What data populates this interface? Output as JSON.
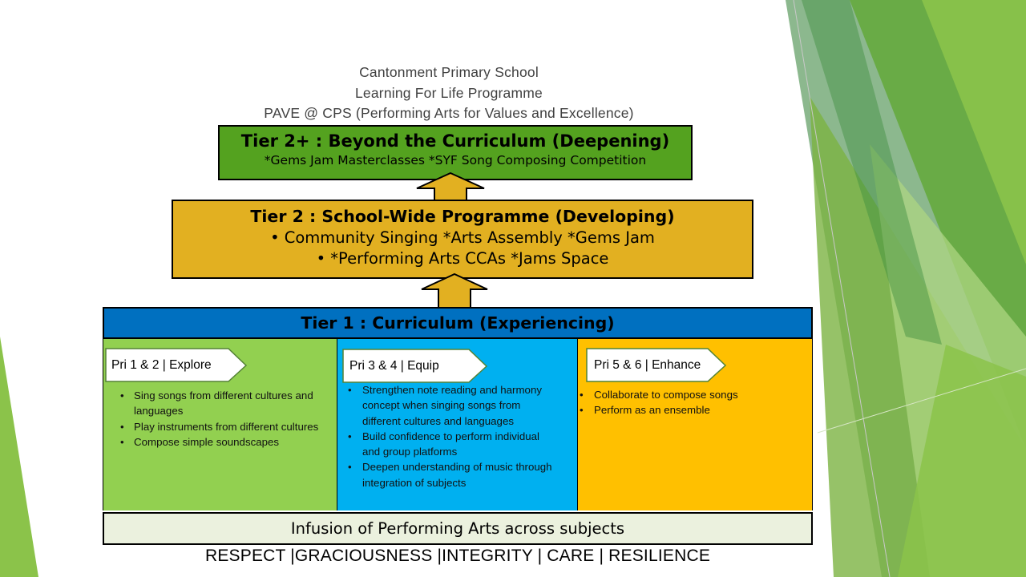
{
  "header": {
    "line1": "Cantonment Primary School",
    "line2": "Learning For Life Programme",
    "line3": "PAVE @ CPS (Performing Arts for Values and Excellence)"
  },
  "tier2plus": {
    "title": "Tier 2+ : Beyond the Curriculum (Deepening)",
    "subtitle": "*Gems Jam Masterclasses  *SYF Song Composing Competition"
  },
  "tier2": {
    "title": "Tier 2 : School-Wide Programme (Developing)",
    "line1": "•  Community Singing  *Arts Assembly *Gems Jam",
    "line2": "•  *Performing Arts CCAs *Jams Space"
  },
  "tier1": {
    "title": "Tier 1 : Curriculum (Experiencing)"
  },
  "panels": [
    {
      "label": "Pri 1 & 2 | Explore",
      "bullets": [
        "Sing songs from different cultures and languages",
        "Play instruments from different cultures",
        "Compose simple soundscapes"
      ]
    },
    {
      "label": "Pri 3 & 4 | Equip",
      "bullets": [
        "Strengthen note reading and harmony concept when singing songs from different cultures and languages",
        "Build confidence to perform individual and group platforms",
        "Deepen understanding of music through integration of subjects"
      ]
    },
    {
      "label": "Pri 5 & 6 | Enhance",
      "bullets": [
        "Collaborate to compose songs",
        "Perform as an ensemble"
      ]
    }
  ],
  "infusion": "Infusion of Performing Arts across subjects",
  "values": "RESPECT |GRACIOUSNESS |INTEGRITY | CARE | RESILIENCE",
  "colors": {
    "tier2plus": "#54a21f",
    "tier2": "#e2b021",
    "tier1": "#0070c0",
    "panel1": "#92d050",
    "panel2": "#00b0f0",
    "panel3": "#ffc000",
    "infusion": "#ebf1de"
  }
}
